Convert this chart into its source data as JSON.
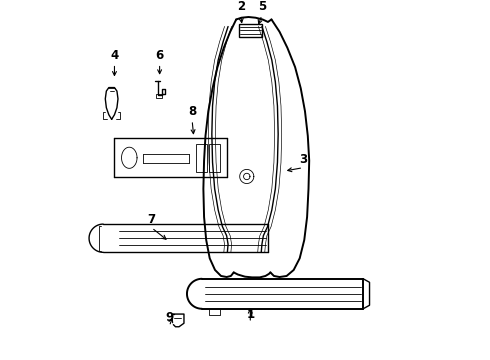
{
  "background_color": "#ffffff",
  "line_color": "#000000",
  "lw_thin": 0.6,
  "lw_med": 1.0,
  "lw_thick": 1.4,
  "labels_info": {
    "1": [
      0.515,
      0.095,
      0.515,
      0.145
    ],
    "2": [
      0.488,
      0.968,
      0.492,
      0.935
    ],
    "3": [
      0.665,
      0.535,
      0.61,
      0.525
    ],
    "4": [
      0.13,
      0.83,
      0.13,
      0.785
    ],
    "5": [
      0.548,
      0.968,
      0.535,
      0.932
    ],
    "6": [
      0.258,
      0.83,
      0.258,
      0.79
    ],
    "7": [
      0.235,
      0.365,
      0.285,
      0.325
    ],
    "8": [
      0.35,
      0.67,
      0.355,
      0.62
    ],
    "9": [
      0.285,
      0.085,
      0.298,
      0.118
    ]
  }
}
